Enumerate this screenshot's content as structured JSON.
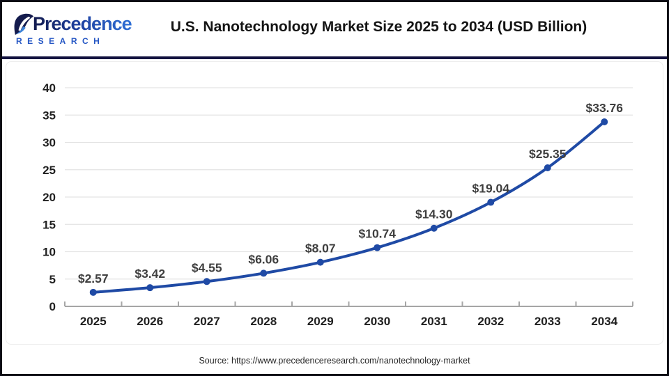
{
  "header": {
    "logo": {
      "name": "Precedence",
      "subtitle": "RESEARCH"
    },
    "title": "U.S. Nanotechnology Market Size 2025 to 2034 (USD Billion)"
  },
  "footer": {
    "source": "Source: https://www.precedenceresearch.com/nanotechnology-market"
  },
  "colors": {
    "line_blue": "#1f4aa5",
    "marker_blue": "#1f4aa5",
    "data_label": "#3f3f3f",
    "axis_label": "#1f1f1f",
    "gridline": "#e3e3e3",
    "axis_line": "#a6a6a6",
    "divider_navy": "#12123f",
    "logo_navy": "#141b4d",
    "logo_blue": "#2f6fd6",
    "research_blue": "#2456c4"
  },
  "chart_data": {
    "type": "line",
    "title": "U.S. Nanotechnology Market Size 2025 to 2034 (USD Billion)",
    "xlabel": "",
    "ylabel": "",
    "categories": [
      "2025",
      "2026",
      "2027",
      "2028",
      "2029",
      "2030",
      "2031",
      "2032",
      "2033",
      "2034"
    ],
    "values": [
      2.57,
      3.42,
      4.55,
      6.06,
      8.07,
      10.74,
      14.3,
      19.04,
      25.35,
      33.76
    ],
    "point_labels": [
      "$2.57",
      "$3.42",
      "$4.55",
      "$6.06",
      "$8.07",
      "$10.74",
      "$14.30",
      "$19.04",
      "$25.35",
      "$33.76"
    ],
    "ylim": [
      0,
      40
    ],
    "ytick_step": 5,
    "yticks": [
      0,
      5,
      10,
      15,
      20,
      25,
      30,
      35,
      40
    ],
    "grid": true,
    "legend": "none",
    "smooth": true
  }
}
